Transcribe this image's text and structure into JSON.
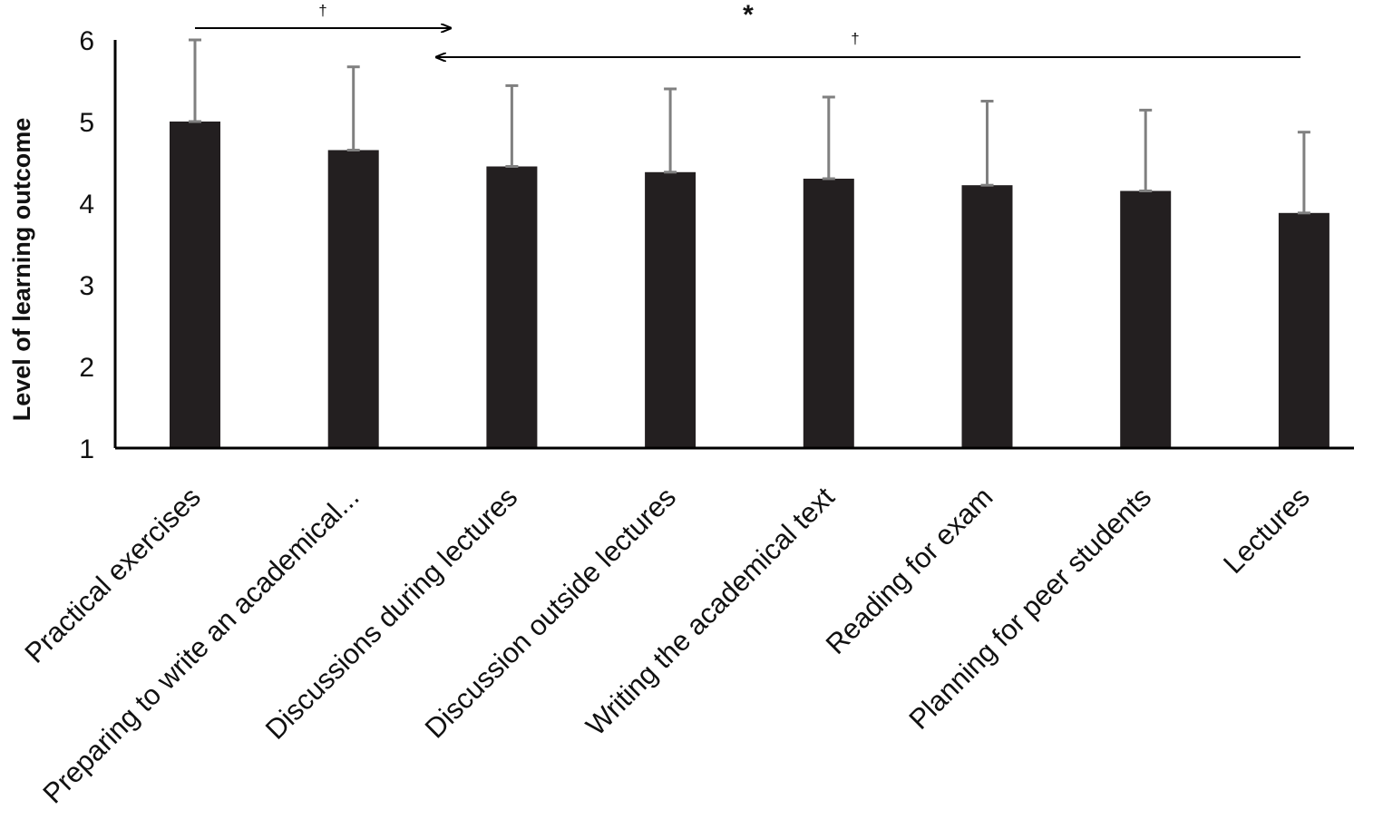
{
  "chart_data": {
    "type": "bar",
    "title": "",
    "xlabel": "",
    "ylabel": "Level of learning outcome",
    "ylim": [
      1,
      6
    ],
    "yticks": [
      "1",
      "2",
      "3",
      "4",
      "5",
      "6"
    ],
    "grid": false,
    "legend": "none",
    "categories": [
      "Practical exercises",
      "Preparing to write an academical...",
      "Discussions during lectures",
      "Discussion outside lectures",
      "Writing the academical text",
      "Reading for exam",
      "Planning for peer students",
      "Lectures"
    ],
    "values": [
      5.0,
      4.65,
      4.45,
      4.38,
      4.3,
      4.22,
      4.15,
      3.88
    ],
    "error_upper": [
      1.0,
      1.02,
      0.99,
      1.02,
      1.0,
      1.03,
      0.99,
      0.99
    ],
    "annotations": [
      {
        "text": "†",
        "type": "arrow-right",
        "from_category": 0,
        "to_category": 2
      },
      {
        "text": "*",
        "type": "label"
      },
      {
        "text": "†",
        "type": "arrow-left",
        "from_category": 7,
        "to_category": 2
      }
    ],
    "colors": {
      "bar": "#231f20",
      "error": "#808080",
      "axis": "#000000"
    }
  }
}
